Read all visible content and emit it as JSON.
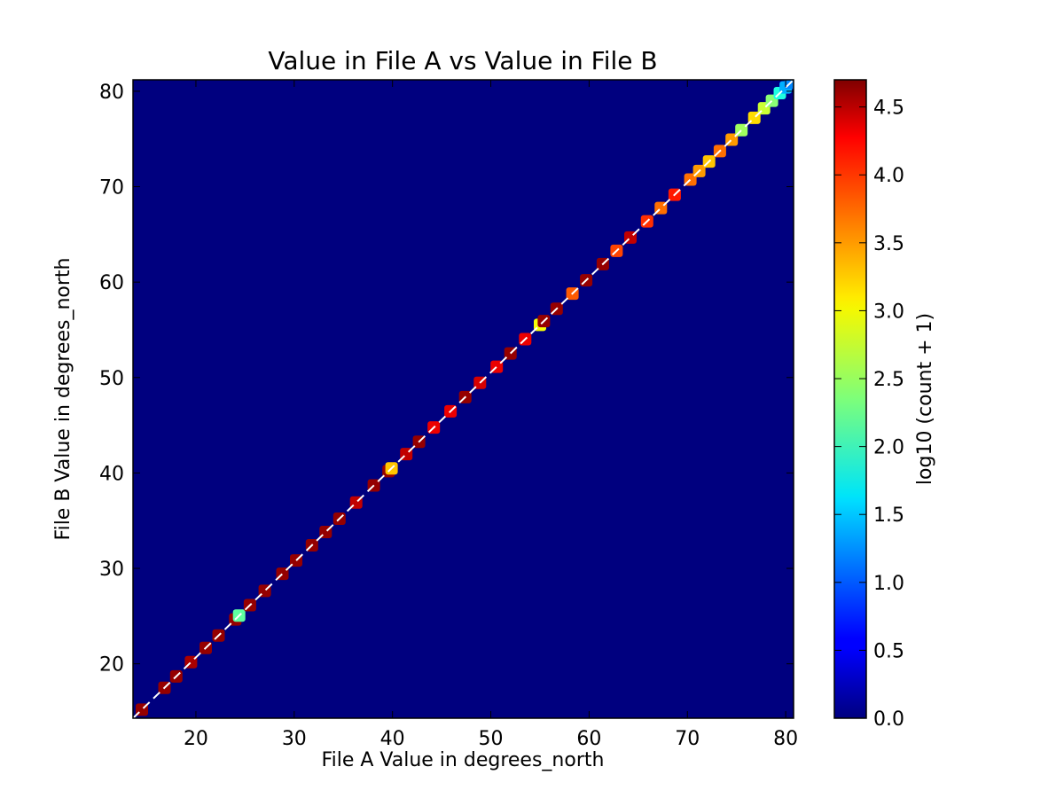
{
  "chart_data": {
    "type": "heatmap",
    "title": "Value in File A vs Value in File B",
    "xlabel": "File A Value in degrees_north",
    "ylabel": "File B Value in degrees_north",
    "xlim": [
      13.6,
      80.8
    ],
    "ylim": [
      14.3,
      81.2
    ],
    "x_ticks": [
      20,
      30,
      40,
      50,
      60,
      70,
      80
    ],
    "y_ticks": [
      20,
      30,
      40,
      50,
      60,
      70,
      80
    ],
    "grid": false,
    "background_value": 0.0,
    "colormap": "jet",
    "colorbar": {
      "label": "log10 (count + 1)",
      "range": [
        0.0,
        4.7
      ],
      "ticks": [
        "0.0",
        "0.5",
        "1.0",
        "1.5",
        "2.0",
        "2.5",
        "3.0",
        "3.5",
        "4.0",
        "4.5"
      ]
    },
    "reference_line": {
      "from": [
        13.6,
        14.3
      ],
      "to": [
        80.8,
        81.2
      ],
      "color": "#ffffff",
      "style": "dashed"
    },
    "diagonal_bins": [
      {
        "x": 14.5,
        "v": 4.6
      },
      {
        "x": 16.8,
        "v": 4.6
      },
      {
        "x": 18.0,
        "v": 4.6
      },
      {
        "x": 19.5,
        "v": 4.5
      },
      {
        "x": 21.0,
        "v": 4.6
      },
      {
        "x": 22.3,
        "v": 4.6
      },
      {
        "x": 24.0,
        "v": 4.6
      },
      {
        "x": 24.4,
        "v": 2.2
      },
      {
        "x": 25.5,
        "v": 4.6
      },
      {
        "x": 27.0,
        "v": 4.6
      },
      {
        "x": 28.8,
        "v": 4.6
      },
      {
        "x": 30.2,
        "v": 4.6
      },
      {
        "x": 31.8,
        "v": 4.6
      },
      {
        "x": 33.2,
        "v": 4.6
      },
      {
        "x": 34.6,
        "v": 4.6
      },
      {
        "x": 36.3,
        "v": 4.4
      },
      {
        "x": 38.1,
        "v": 4.6
      },
      {
        "x": 39.6,
        "v": 4.6
      },
      {
        "x": 39.9,
        "v": 3.2
      },
      {
        "x": 41.4,
        "v": 4.4
      },
      {
        "x": 42.7,
        "v": 4.6
      },
      {
        "x": 44.2,
        "v": 4.2
      },
      {
        "x": 45.9,
        "v": 4.2
      },
      {
        "x": 47.4,
        "v": 4.6
      },
      {
        "x": 48.9,
        "v": 4.3
      },
      {
        "x": 50.6,
        "v": 4.2
      },
      {
        "x": 52.0,
        "v": 4.6
      },
      {
        "x": 53.5,
        "v": 4.2
      },
      {
        "x": 55.0,
        "v": 2.9
      },
      {
        "x": 55.4,
        "v": 4.6
      },
      {
        "x": 56.7,
        "v": 4.6
      },
      {
        "x": 58.3,
        "v": 3.7
      },
      {
        "x": 59.7,
        "v": 4.6
      },
      {
        "x": 61.4,
        "v": 4.6
      },
      {
        "x": 62.8,
        "v": 3.8
      },
      {
        "x": 64.2,
        "v": 4.4
      },
      {
        "x": 65.9,
        "v": 3.9
      },
      {
        "x": 67.3,
        "v": 3.6
      },
      {
        "x": 68.7,
        "v": 4.0
      },
      {
        "x": 70.3,
        "v": 3.6
      },
      {
        "x": 71.2,
        "v": 3.4
      },
      {
        "x": 72.2,
        "v": 3.2
      },
      {
        "x": 73.3,
        "v": 3.6
      },
      {
        "x": 74.5,
        "v": 3.4
      },
      {
        "x": 75.5,
        "v": 2.5
      },
      {
        "x": 76.8,
        "v": 3.1
      },
      {
        "x": 77.8,
        "v": 2.7
      },
      {
        "x": 78.6,
        "v": 2.4
      },
      {
        "x": 79.4,
        "v": 1.9
      },
      {
        "x": 80.0,
        "v": 1.4
      },
      {
        "x": 80.5,
        "v": 1.2
      }
    ]
  }
}
